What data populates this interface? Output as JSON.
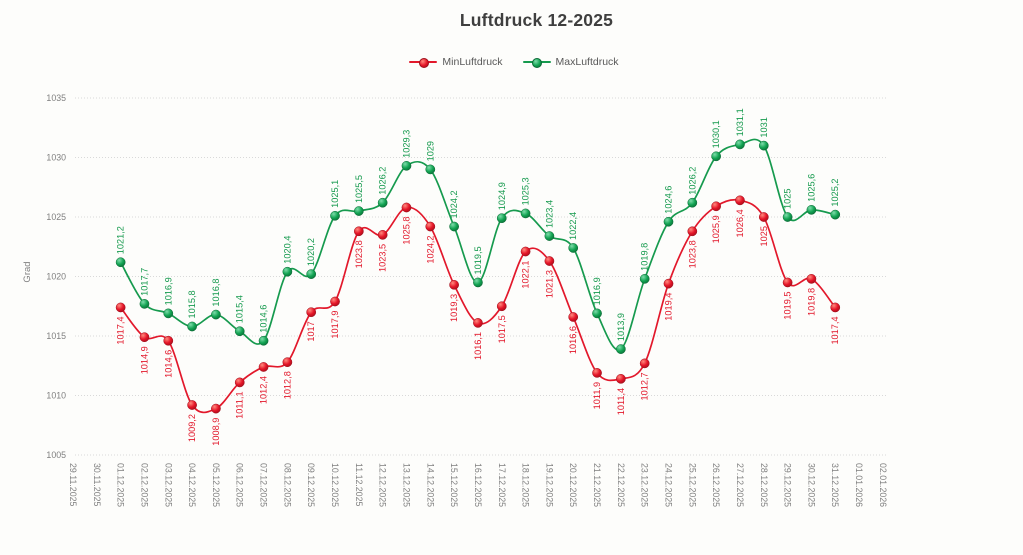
{
  "chart_data": {
    "type": "line",
    "title": "Luftdruck 12-2025",
    "xlabel": "",
    "ylabel": "Grad",
    "ylim": [
      1005,
      1035
    ],
    "ytick_step": 5,
    "grid": true,
    "smooth": true,
    "legend_position": "top-center",
    "x_labels": [
      "29.11.2025",
      "30.11.2025",
      "01.12.2025",
      "02.12.2025",
      "03.12.2025",
      "04.12.2025",
      "05.12.2025",
      "06.12.2025",
      "07.12.2025",
      "08.12.2025",
      "09.12.2025",
      "10.12.2025",
      "11.12.2025",
      "12.12.2025",
      "13.12.2025",
      "14.12.2025",
      "15.12.2025",
      "16.12.2025",
      "17.12.2025",
      "18.12.2025",
      "19.12.2025",
      "20.12.2025",
      "21.12.2025",
      "22.12.2025",
      "23.12.2025",
      "24.12.2025",
      "25.12.2025",
      "26.12.2025",
      "27.12.2025",
      "28.12.2025",
      "29.12.2025",
      "30.12.2025",
      "31.12.2025",
      "01.01.2026",
      "02.01.2026"
    ],
    "data_start_label_index": 2,
    "series": [
      {
        "name": "MinLuftdruck",
        "color": "#e2182b",
        "label_position": "below",
        "marker": {
          "highlight": "#ff8a7e",
          "fill": "#e51427",
          "edge": "#9e0f1c"
        },
        "values": [
          1017.4,
          1014.9,
          1014.6,
          1009.2,
          1008.9,
          1011.1,
          1012.4,
          1012.8,
          1017,
          1017.9,
          1023.8,
          1023.5,
          1025.8,
          1024.2,
          1019.3,
          1016.1,
          1017.5,
          1022.1,
          1021.3,
          1016.6,
          1011.9,
          1011.4,
          1012.7,
          1019.4,
          1023.8,
          1025.9,
          1026.4,
          1025,
          1019.5,
          1019.8,
          1017.4
        ],
        "value_labels": [
          "1017,4",
          "1014,9",
          "1014,6",
          "1009,2",
          "1008,9",
          "1011,1",
          "1012,4",
          "1012,8",
          "1017",
          "1017,9",
          "1023,8",
          "1023,5",
          "1025,8",
          "1024,2",
          "1019,3",
          "1016,1",
          "1017,5",
          "1022,1",
          "1021,3",
          "1016,6",
          "1011,9",
          "1011,4",
          "1012,7",
          "1019,4",
          "1023,8",
          "1025,9",
          "1026,4",
          "1025",
          "1019,5",
          "1019,8",
          "1017,4"
        ]
      },
      {
        "name": "MaxLuftdruck",
        "color": "#169a4e",
        "label_position": "above",
        "marker": {
          "highlight": "#7edcaa",
          "fill": "#12a352",
          "edge": "#0b6a35"
        },
        "values": [
          1021.2,
          1017.7,
          1016.9,
          1015.8,
          1016.8,
          1015.4,
          1014.6,
          1020.4,
          1020.2,
          1025.1,
          1025.5,
          1026.2,
          1029.3,
          1029,
          1024.2,
          1019.5,
          1024.9,
          1025.3,
          1023.4,
          1022.4,
          1016.9,
          1013.9,
          1019.8,
          1024.6,
          1026.2,
          1030.1,
          1031.1,
          1031,
          1025,
          1025.6,
          1025.2
        ],
        "value_labels": [
          "1021,2",
          "1017,7",
          "1016,9",
          "1015,8",
          "1016,8",
          "1015,4",
          "1014,6",
          "1020,4",
          "1020,2",
          "1025,1",
          "1025,5",
          "1026,2",
          "1029,3",
          "1029",
          "1024,2",
          "1019,5",
          "1024,9",
          "1025,3",
          "1023,4",
          "1022,4",
          "1016,9",
          "1013,9",
          "1019,8",
          "1024,6",
          "1026,2",
          "1030,1",
          "1031,1",
          "1031",
          "1025",
          "1025,6",
          "1025,2"
        ]
      }
    ],
    "style": {
      "gridline_color": "#d9d9d9",
      "axis_text_color": "#7f7f7f",
      "legend_text_color": "#595959",
      "title_color": "#3f3f3f",
      "background": "#fdfdfb"
    }
  }
}
